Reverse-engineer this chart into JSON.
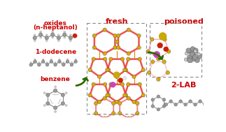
{
  "background_color": "#ffffff",
  "labels": {
    "oxides": "oxides",
    "n_heptanol": "(n-heptanol)",
    "dodecene": "1-dodecene",
    "benzene": "benzene",
    "fresh": "fresh",
    "poisoned": "poisoned",
    "lab": "2-LAB"
  },
  "label_color": "#cc0000",
  "label_fs": 6.5,
  "header_fs": 8.0,
  "arrow_color": "#2a6a00",
  "ring_red": "#ee3333",
  "ring_orange": "#dd8800",
  "ring_lw": 1.8,
  "ring_alpha": 0.85,
  "node_color": "#ddaa00",
  "node_r": 0.007,
  "atom_gray": "#999999",
  "atom_light": "#cccccc",
  "atom_red": "#cc2200",
  "atom_yellow": "#ccaa00",
  "atom_pink": "#cc44bb",
  "atom_white": "#eeeeee"
}
